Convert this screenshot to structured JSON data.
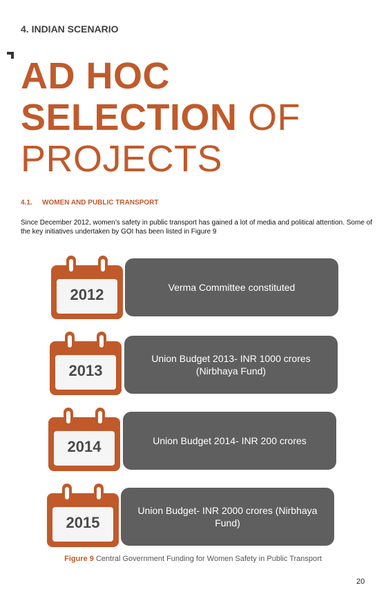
{
  "section_heading": "4.  INDIAN SCENARIO",
  "title": {
    "line1": "AD HOC",
    "line2_bold": "SELECTION",
    "line2_rest": " OF",
    "line3": "PROJECTS"
  },
  "subsection": {
    "number": "4.1.",
    "title": "WOMEN AND PUBLIC TRANSPORT"
  },
  "paragraph": "Since December 2012, women’s safety in public transport has gained a lot of media and political attention. Some of the key initiatives undertaken by GOI has been listed in Figure 9",
  "timeline": [
    {
      "year": "2012",
      "text": "Verma Committee constituted"
    },
    {
      "year": "2013",
      "text": "Union Budget 2013- INR 1000 crores (Nirbhaya Fund)"
    },
    {
      "year": "2014",
      "text": "Union Budget 2014- INR 200 crores"
    },
    {
      "year": "2015",
      "text": "Union Budget- INR 2000 crores (Nirbhaya Fund)"
    }
  ],
  "caption": {
    "label": "Figure 9",
    "text": " Central Government Funding for Women Safety in Public Transport"
  },
  "page_number": "20",
  "colors": {
    "accent": "#c05a2b",
    "box": "#5f5f5f",
    "year_text": "#4a4a4a"
  }
}
